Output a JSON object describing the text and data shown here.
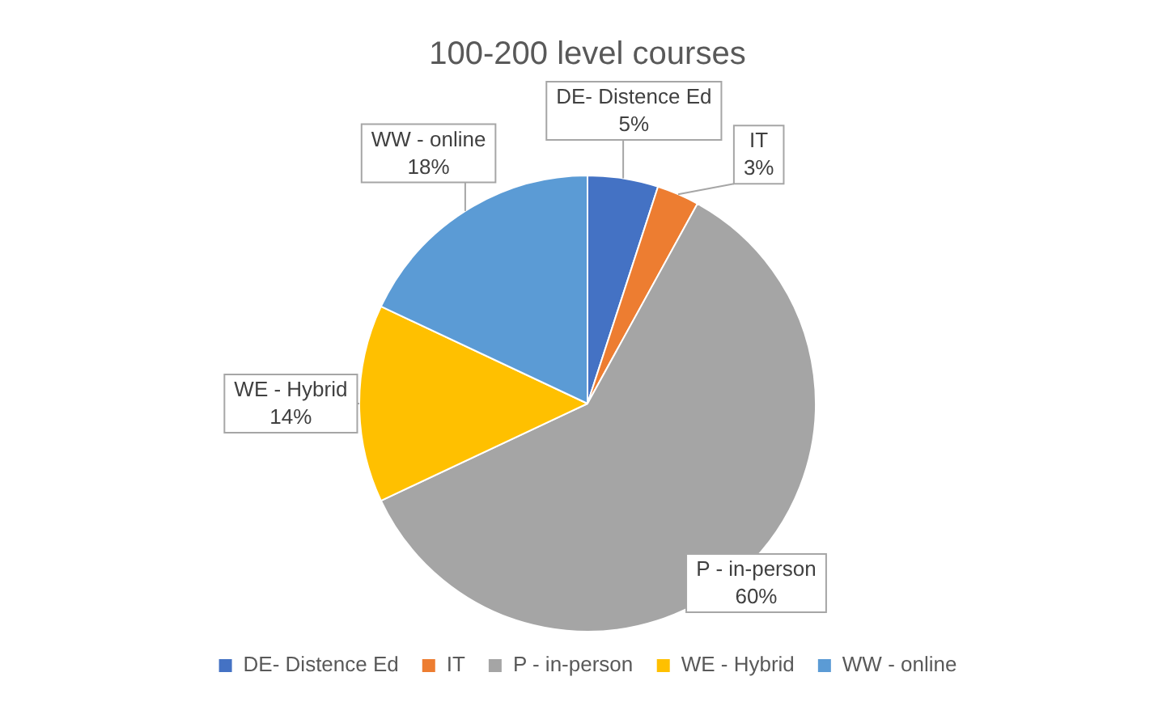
{
  "chart_data": {
    "type": "pie",
    "title": "100-200 level courses",
    "categories": [
      "DE- Distence Ed",
      "IT",
      "P - in-person",
      "WE - Hybrid",
      "WW - online"
    ],
    "values": [
      5,
      3,
      60,
      14,
      18
    ],
    "colors": [
      "#4472c4",
      "#ed7d31",
      "#a5a5a5",
      "#ffc000",
      "#5b9bd5"
    ],
    "value_labels": [
      "5%",
      "3%",
      "60%",
      "14%",
      "18%"
    ],
    "legend": "bottom"
  }
}
